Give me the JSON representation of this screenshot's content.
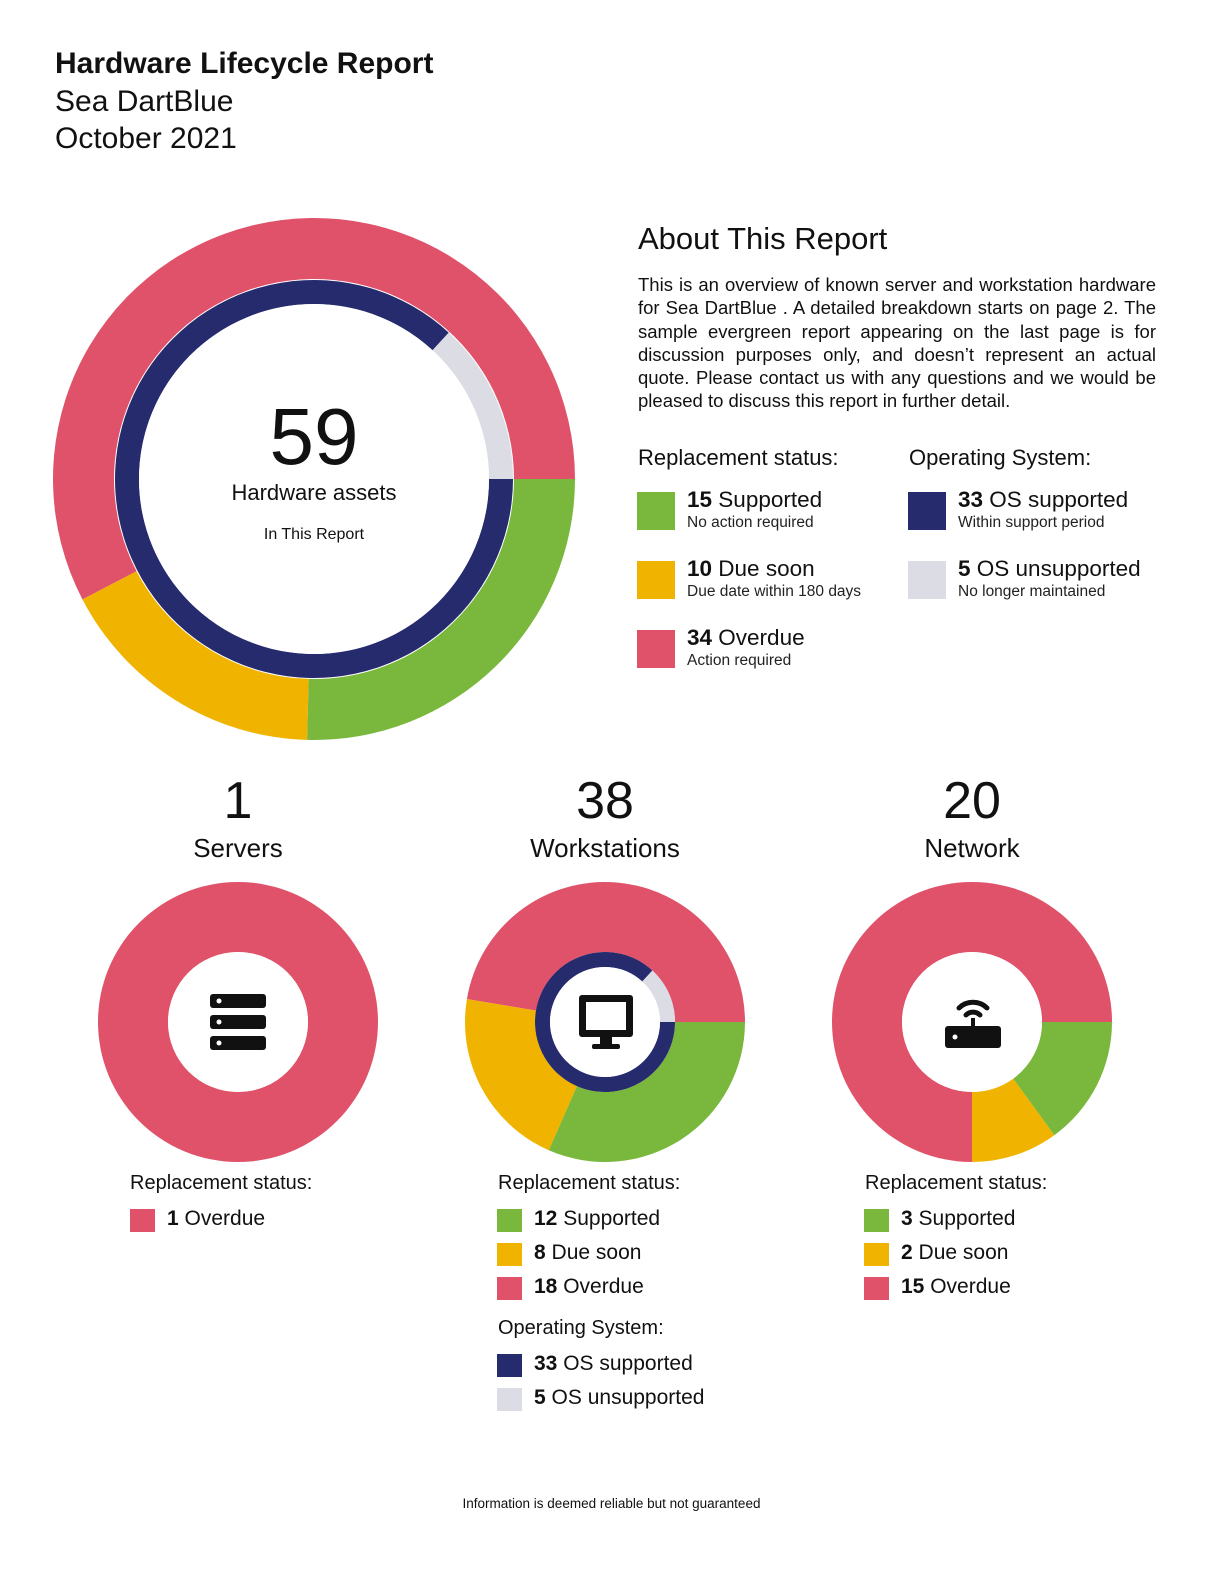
{
  "header": {
    "title": "Hardware Lifecycle Report",
    "client": "Sea DartBlue",
    "date": "October 2021"
  },
  "about": {
    "title": "About This Report",
    "text": "This is an overview of known server and workstation hardware for Sea DartBlue . A detailed breakdown starts on page 2. The sample evergreen report appearing on the last page is for discussion purposes only, and doesn’t represent an actual quote. Please contact us with any questions and we would be pleased to discuss this report in further detail."
  },
  "colors": {
    "supported": "#7ab83d",
    "due_soon": "#f0b400",
    "overdue": "#e0526a",
    "os_supported": "#262b6e",
    "os_unsupported": "#dcdce4"
  },
  "summary_legend": {
    "replacement_heading": "Replacement status:",
    "os_heading": "Operating System:",
    "items": {
      "supported": {
        "count": "15",
        "label": "Supported",
        "desc": "No action required"
      },
      "due_soon": {
        "count": "10",
        "label": "Due soon",
        "desc": "Due date within 180 days"
      },
      "overdue": {
        "count": "34",
        "label": "Overdue",
        "desc": "Action required"
      },
      "os_supported": {
        "count": "33",
        "label": "OS supported",
        "desc": "Within support period"
      },
      "os_unsupported": {
        "count": "5",
        "label": "OS unsupported",
        "desc": "No longer maintained"
      }
    }
  },
  "main_center": {
    "total": "59",
    "label": "Hardware assets",
    "sublabel": "In This Report"
  },
  "categories": {
    "servers": {
      "count": "1",
      "name": "Servers",
      "icon": "server-icon",
      "replacement_heading": "Replacement status:",
      "legend": {
        "overdue": {
          "count": "1",
          "label": "Overdue"
        }
      }
    },
    "workstations": {
      "count": "38",
      "name": "Workstations",
      "icon": "monitor-icon",
      "replacement_heading": "Replacement status:",
      "os_heading": "Operating System:",
      "legend": {
        "supported": {
          "count": "12",
          "label": "Supported"
        },
        "due_soon": {
          "count": "8",
          "label": "Due soon"
        },
        "overdue": {
          "count": "18",
          "label": "Overdue"
        },
        "os_supported": {
          "count": "33",
          "label": "OS supported"
        },
        "os_unsupported": {
          "count": "5",
          "label": "OS unsupported"
        }
      }
    },
    "network": {
      "count": "20",
      "name": "Network",
      "icon": "router-icon",
      "replacement_heading": "Replacement status:",
      "legend": {
        "supported": {
          "count": "3",
          "label": "Supported"
        },
        "due_soon": {
          "count": "2",
          "label": "Due soon"
        },
        "overdue": {
          "count": "15",
          "label": "Overdue"
        }
      }
    }
  },
  "footer": "Information is deemed reliable but not guaranteed",
  "chart_data": [
    {
      "type": "pie",
      "variant": "donut",
      "categories": [
        "Supported",
        "Due soon",
        "Overdue"
      ],
      "values": [
        15,
        10,
        34
      ],
      "inner_ring": {
        "categories": [
          "OS supported",
          "OS unsupported"
        ],
        "values": [
          33,
          5
        ]
      },
      "center_value": 59
    },
    {
      "type": "pie",
      "variant": "donut",
      "categories": [
        "Overdue"
      ],
      "values": [
        1
      ]
    },
    {
      "type": "pie",
      "variant": "donut",
      "categories": [
        "Supported",
        "Due soon",
        "Overdue"
      ],
      "values": [
        12,
        8,
        18
      ],
      "inner_ring": {
        "categories": [
          "OS supported",
          "OS unsupported"
        ],
        "values": [
          33,
          5
        ]
      }
    },
    {
      "type": "pie",
      "variant": "donut",
      "categories": [
        "Supported",
        "Due soon",
        "Overdue"
      ],
      "values": [
        3,
        2,
        15
      ]
    }
  ]
}
